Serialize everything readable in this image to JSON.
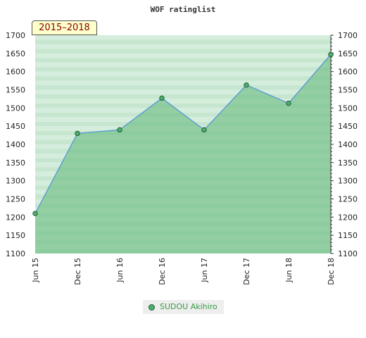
{
  "chart_data": {
    "type": "area",
    "title": "WOF ratinglist",
    "period": "2015–2018",
    "categories": [
      "Jun 15",
      "Dec 15",
      "Jun 16",
      "Dec 16",
      "Jun 17",
      "Dec 17",
      "Jun 18",
      "Dec 18"
    ],
    "series": [
      {
        "name": "SUDOU Akihiro",
        "values": [
          1210,
          1430,
          1440,
          1527,
          1440,
          1563,
          1513,
          1647
        ]
      }
    ],
    "yticks": [
      1100,
      1150,
      1200,
      1250,
      1300,
      1350,
      1400,
      1450,
      1500,
      1550,
      1600,
      1650,
      1700
    ],
    "ylim": [
      1100,
      1700
    ],
    "legend_position": "bottom-center",
    "colors": {
      "line": "#5b9bd5",
      "area": "#5fb777",
      "marker": "#4caf6e",
      "marker_stroke": "#245c35",
      "band_light": "#bfe3c9",
      "band_dark": "#a8d9b5",
      "background": "#ffffff"
    }
  }
}
